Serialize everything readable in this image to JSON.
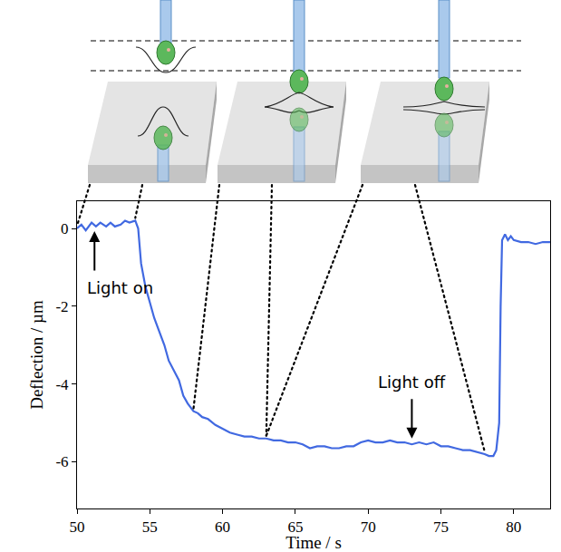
{
  "chart_data": {
    "type": "line",
    "x_label": "Time / s",
    "y_label": "Deflection / µm",
    "x": [
      50,
      50.3,
      50.6,
      51,
      51.3,
      51.6,
      52,
      52.3,
      52.6,
      53,
      53.3,
      53.6,
      54,
      54.2,
      54.4,
      54.7,
      55,
      55.3,
      55.6,
      56,
      56.3,
      56.6,
      57,
      57.3,
      57.6,
      58,
      58.3,
      58.6,
      59,
      59.5,
      60,
      60.5,
      61,
      61.5,
      62,
      62.5,
      63,
      63.5,
      64,
      64.5,
      65,
      65.5,
      66,
      66.5,
      67,
      67.5,
      68,
      68.5,
      69,
      69.5,
      70,
      70.5,
      71,
      71.5,
      72,
      72.5,
      73,
      73.5,
      74,
      74.5,
      75,
      75.5,
      76,
      76.5,
      77,
      77.5,
      78,
      78.3,
      78.6,
      78.8,
      79,
      79.1,
      79.2,
      79.4,
      79.6,
      79.8,
      80,
      80.5,
      81,
      81.5,
      82,
      82.5
    ],
    "series": [
      {
        "color": "#4169e1",
        "values": [
          0,
          0.1,
          -0.05,
          0.15,
          0.05,
          0.15,
          0.05,
          0.15,
          0.05,
          0.1,
          0.2,
          0.15,
          0.2,
          0,
          -0.9,
          -1.5,
          -1.9,
          -2.3,
          -2.6,
          -3,
          -3.4,
          -3.6,
          -3.9,
          -4.3,
          -4.5,
          -4.7,
          -4.75,
          -4.85,
          -4.9,
          -5.05,
          -5.15,
          -5.25,
          -5.3,
          -5.35,
          -5.35,
          -5.4,
          -5.4,
          -5.45,
          -5.45,
          -5.5,
          -5.5,
          -5.55,
          -5.65,
          -5.6,
          -5.6,
          -5.65,
          -5.65,
          -5.6,
          -5.6,
          -5.5,
          -5.45,
          -5.5,
          -5.5,
          -5.45,
          -5.5,
          -5.5,
          -5.55,
          -5.5,
          -5.55,
          -5.5,
          -5.6,
          -5.6,
          -5.65,
          -5.7,
          -5.7,
          -5.75,
          -5.8,
          -5.85,
          -5.85,
          -5.7,
          -5,
          -2,
          -0.3,
          -0.15,
          -0.3,
          -0.2,
          -0.3,
          -0.35,
          -0.35,
          -0.4,
          -0.35,
          -0.35
        ]
      }
    ],
    "xlim": [
      50,
      82.5
    ],
    "xticks": [
      50,
      55,
      60,
      65,
      70,
      75,
      80
    ],
    "ylim": [
      -7.2,
      0.7
    ],
    "yticks": [
      -6,
      -4,
      -2,
      0
    ],
    "annotations": [
      {
        "text": "Light on",
        "x": 51.2
      },
      {
        "text": "Light off",
        "x": 73
      }
    ],
    "grid": false
  }
}
